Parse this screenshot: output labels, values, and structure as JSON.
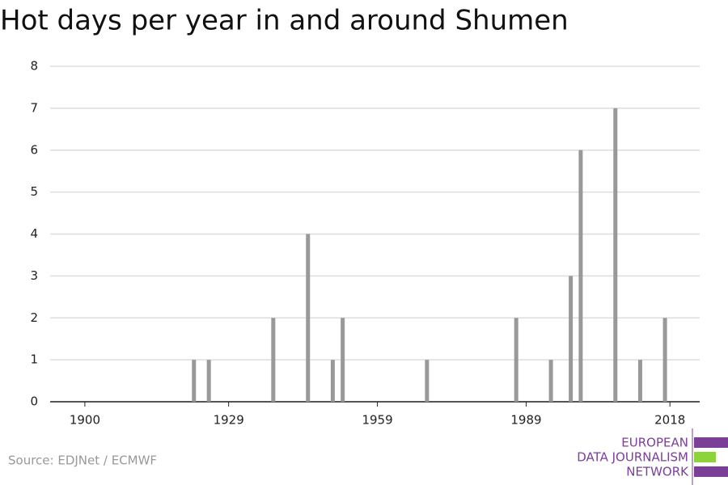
{
  "chart_data": {
    "type": "bar",
    "title": "Hot days per year in and around Shumen",
    "x": [
      1922,
      1925,
      1938,
      1945,
      1950,
      1952,
      1969,
      1987,
      1994,
      1998,
      2000,
      2007,
      2012,
      2017
    ],
    "values": [
      1,
      1,
      2,
      4,
      1,
      2,
      1,
      2,
      1,
      3,
      6,
      7,
      1,
      2
    ],
    "color": "#999999",
    "xlim": [
      1893,
      2024
    ],
    "xticks": [
      1900,
      1929,
      1959,
      1989,
      2018
    ],
    "ylim": [
      0,
      8
    ],
    "yticks": [
      0,
      1,
      2,
      3,
      4,
      5,
      6,
      7,
      8
    ],
    "grid": true
  },
  "source": "Source: EDJNet / ECMWF",
  "logo": {
    "lines": [
      "EUROPEAN",
      "DATA JOURNALISM",
      "NETWORK"
    ]
  }
}
